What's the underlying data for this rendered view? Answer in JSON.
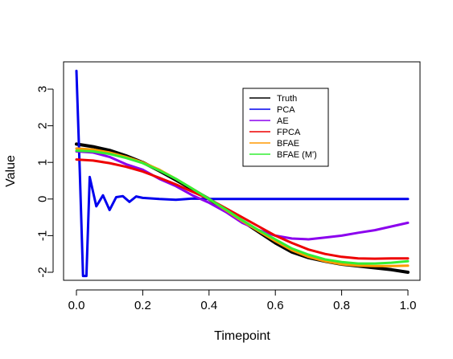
{
  "chart_data": {
    "type": "line",
    "title": "",
    "xlabel": "Timepoint",
    "ylabel": "Value",
    "xlim": [
      0,
      1
    ],
    "ylim": [
      -2,
      3.5
    ],
    "x_ticks": [
      0.0,
      0.2,
      0.4,
      0.6,
      0.8,
      1.0
    ],
    "x_tick_labels": [
      "0.0",
      "0.2",
      "0.4",
      "0.6",
      "0.8",
      "1.0"
    ],
    "y_ticks": [
      -2,
      -1,
      0,
      1,
      2,
      3
    ],
    "y_tick_labels": [
      "-2",
      "-1",
      "0",
      "1",
      "2",
      "3"
    ],
    "legend_position": "top-right",
    "grid": false,
    "series": [
      {
        "name": "Truth",
        "color": "#000000",
        "width": 4,
        "x": [
          0,
          0.05,
          0.1,
          0.15,
          0.2,
          0.25,
          0.3,
          0.35,
          0.4,
          0.45,
          0.5,
          0.55,
          0.6,
          0.65,
          0.7,
          0.75,
          0.8,
          0.85,
          0.9,
          0.95,
          1.0
        ],
        "y": [
          1.5,
          1.43,
          1.33,
          1.18,
          1.0,
          0.77,
          0.52,
          0.26,
          0.0,
          -0.3,
          -0.6,
          -0.9,
          -1.2,
          -1.45,
          -1.6,
          -1.7,
          -1.78,
          -1.83,
          -1.88,
          -1.93,
          -2.0
        ]
      },
      {
        "name": "PCA",
        "color": "#0000ee",
        "width": 3,
        "x": [
          0,
          0.01,
          0.02,
          0.03,
          0.04,
          0.06,
          0.08,
          0.1,
          0.12,
          0.14,
          0.16,
          0.18,
          0.2,
          0.25,
          0.3,
          0.35,
          0.4,
          0.5,
          0.6,
          0.7,
          0.8,
          0.9,
          1.0
        ],
        "y": [
          3.5,
          0.8,
          -2.1,
          -2.1,
          0.6,
          -0.2,
          0.1,
          -0.3,
          0.05,
          0.08,
          -0.08,
          0.07,
          0.03,
          0.0,
          -0.02,
          0.01,
          0.0,
          0.0,
          0.0,
          0.0,
          0.0,
          0.0,
          0.0
        ]
      },
      {
        "name": "AE",
        "color": "#8b00ee",
        "width": 3,
        "x": [
          0,
          0.05,
          0.1,
          0.15,
          0.2,
          0.25,
          0.3,
          0.35,
          0.4,
          0.45,
          0.5,
          0.55,
          0.6,
          0.65,
          0.7,
          0.75,
          0.8,
          0.85,
          0.9,
          0.95,
          1.0
        ],
        "y": [
          1.3,
          1.27,
          1.15,
          0.95,
          0.8,
          0.55,
          0.35,
          0.1,
          -0.1,
          -0.35,
          -0.65,
          -0.85,
          -1.0,
          -1.08,
          -1.1,
          -1.05,
          -1.0,
          -0.92,
          -0.85,
          -0.75,
          -0.65
        ]
      },
      {
        "name": "FPCA",
        "color": "#ee0000",
        "width": 3,
        "x": [
          0,
          0.05,
          0.1,
          0.15,
          0.2,
          0.25,
          0.3,
          0.35,
          0.4,
          0.45,
          0.5,
          0.55,
          0.6,
          0.65,
          0.7,
          0.75,
          0.8,
          0.85,
          0.9,
          0.95,
          1.0
        ],
        "y": [
          1.08,
          1.05,
          0.98,
          0.88,
          0.75,
          0.58,
          0.4,
          0.2,
          0.0,
          -0.25,
          -0.5,
          -0.75,
          -1.0,
          -1.2,
          -1.38,
          -1.5,
          -1.58,
          -1.62,
          -1.63,
          -1.62,
          -1.62
        ]
      },
      {
        "name": "BFAE",
        "color": "#ff9900",
        "width": 3,
        "x": [
          0,
          0.05,
          0.1,
          0.15,
          0.2,
          0.25,
          0.3,
          0.35,
          0.4,
          0.45,
          0.5,
          0.55,
          0.6,
          0.65,
          0.7,
          0.75,
          0.8,
          0.85,
          0.9,
          0.95,
          1.0
        ],
        "y": [
          1.38,
          1.35,
          1.27,
          1.15,
          1.0,
          0.8,
          0.55,
          0.28,
          0.0,
          -0.3,
          -0.6,
          -0.88,
          -1.15,
          -1.4,
          -1.58,
          -1.7,
          -1.78,
          -1.82,
          -1.83,
          -1.83,
          -1.82
        ]
      },
      {
        "name": "BFAE (M')",
        "color": "#33ee33",
        "width": 3,
        "x": [
          0,
          0.05,
          0.1,
          0.15,
          0.2,
          0.25,
          0.3,
          0.35,
          0.4,
          0.45,
          0.5,
          0.55,
          0.6,
          0.65,
          0.7,
          0.75,
          0.8,
          0.85,
          0.9,
          0.95,
          1.0
        ],
        "y": [
          1.32,
          1.3,
          1.23,
          1.12,
          0.98,
          0.78,
          0.55,
          0.28,
          0.0,
          -0.28,
          -0.58,
          -0.85,
          -1.1,
          -1.35,
          -1.52,
          -1.65,
          -1.72,
          -1.76,
          -1.76,
          -1.74,
          -1.7
        ]
      }
    ]
  }
}
